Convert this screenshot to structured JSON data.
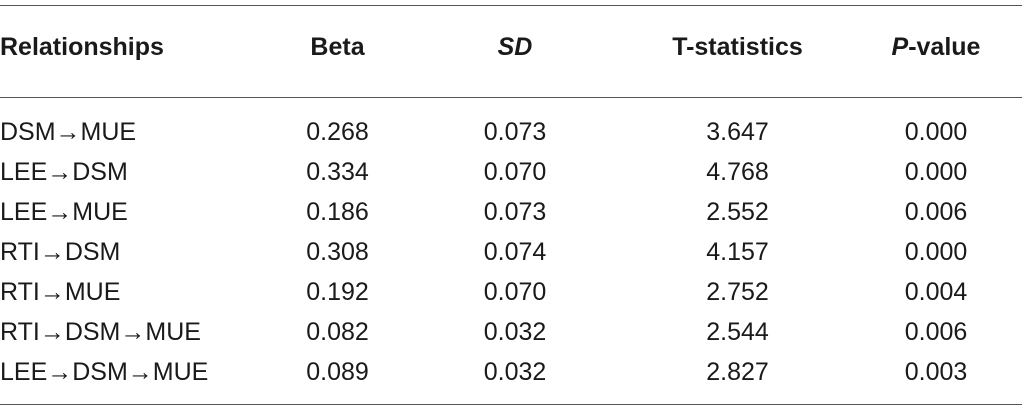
{
  "table": {
    "headers": {
      "relationships": "Relationships",
      "beta": "Beta",
      "sd": "SD",
      "t_statistics": "T-statistics",
      "p_italic": "P",
      "p_rest": "-value"
    },
    "rows": [
      {
        "relationship": "DSM→MUE",
        "beta": "0.268",
        "sd": "0.073",
        "t": "3.647",
        "p": "0.000"
      },
      {
        "relationship": "LEE→DSM",
        "beta": "0.334",
        "sd": "0.070",
        "t": "4.768",
        "p": "0.000"
      },
      {
        "relationship": "LEE→MUE",
        "beta": "0.186",
        "sd": "0.073",
        "t": "2.552",
        "p": "0.006"
      },
      {
        "relationship": "RTI→DSM",
        "beta": "0.308",
        "sd": "0.074",
        "t": "4.157",
        "p": "0.000"
      },
      {
        "relationship": "RTI→MUE",
        "beta": "0.192",
        "sd": "0.070",
        "t": "2.752",
        "p": "0.004"
      },
      {
        "relationship": "RTI→DSM→MUE",
        "beta": "0.082",
        "sd": "0.032",
        "t": "2.544",
        "p": "0.006"
      },
      {
        "relationship": "LEE→DSM→MUE",
        "beta": "0.089",
        "sd": "0.032",
        "t": "2.827",
        "p": "0.003"
      }
    ]
  }
}
